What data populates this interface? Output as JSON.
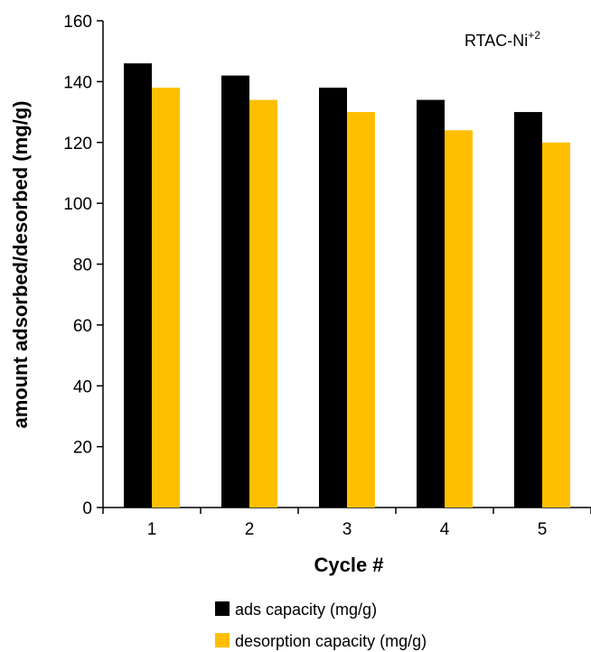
{
  "chart_data": {
    "type": "bar",
    "title": "",
    "xlabel": "Cycle #",
    "ylabel": "amount adsorbed/desorbed (mg/g)",
    "categories": [
      "1",
      "2",
      "3",
      "4",
      "5"
    ],
    "series": [
      {
        "name": "ads capacity (mg/g)",
        "color": "#000000",
        "values": [
          146,
          142,
          138,
          134,
          130
        ]
      },
      {
        "name": "desorption capacity (mg/g)",
        "color": "#FFBF00",
        "values": [
          138,
          134,
          130,
          124,
          120
        ]
      }
    ],
    "ylim": [
      0,
      160
    ],
    "yticks": [
      0,
      20,
      40,
      60,
      80,
      100,
      120,
      140,
      160
    ],
    "grid": false,
    "legend_position": "bottom",
    "annotation": {
      "text": "RTAC-Ni",
      "superscript": "+2",
      "position": "top-right"
    }
  }
}
